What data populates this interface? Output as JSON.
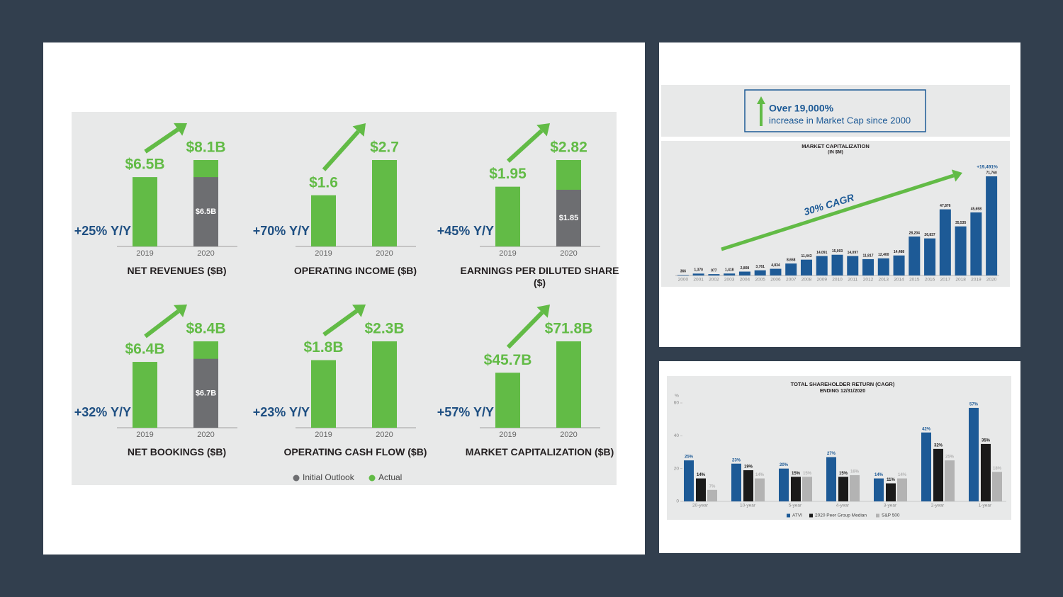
{
  "legend": [
    {
      "name": "Initial Outlook",
      "color": "#6d6e71"
    },
    {
      "name": "Actual",
      "color": "#62bb46"
    }
  ],
  "callout": {
    "headline": "Over 19,000%",
    "text": "increase in Market Cap since 2000"
  },
  "chart_data": [
    {
      "type": "bar",
      "title": "NET REVENUES ($B)",
      "growth_label": "+25% Y/Y",
      "categories": [
        "2019",
        "2020"
      ],
      "values": [
        6.5,
        8.1
      ],
      "value_labels": [
        "$6.5B",
        "$8.1B"
      ],
      "outlook_values": [
        null,
        6.5
      ],
      "outlook_labels": [
        null,
        "$6.5B"
      ]
    },
    {
      "type": "bar",
      "title": "OPERATING INCOME ($B)",
      "growth_label": "+70% Y/Y",
      "categories": [
        "2019",
        "2020"
      ],
      "values": [
        1.6,
        2.7
      ],
      "value_labels": [
        "$1.6",
        "$2.7"
      ]
    },
    {
      "type": "bar",
      "title": "EARNINGS PER DILUTED SHARE ($)",
      "growth_label": "+45% Y/Y",
      "categories": [
        "2019",
        "2020"
      ],
      "values": [
        1.95,
        2.82
      ],
      "value_labels": [
        "$1.95",
        "$2.82"
      ],
      "outlook_values": [
        null,
        1.85
      ],
      "outlook_labels": [
        null,
        "$1.85"
      ]
    },
    {
      "type": "bar",
      "title": "NET BOOKINGS ($B)",
      "growth_label": "+32% Y/Y",
      "categories": [
        "2019",
        "2020"
      ],
      "values": [
        6.4,
        8.4
      ],
      "value_labels": [
        "$6.4B",
        "$8.4B"
      ],
      "outlook_values": [
        null,
        6.7
      ],
      "outlook_labels": [
        null,
        "$6.7B"
      ]
    },
    {
      "type": "bar",
      "title": "OPERATING CASH FLOW ($B)",
      "growth_label": "+23% Y/Y",
      "categories": [
        "2019",
        "2020"
      ],
      "values": [
        1.8,
        2.3
      ],
      "value_labels": [
        "$1.8B",
        "$2.3B"
      ]
    },
    {
      "type": "bar",
      "title": "MARKET CAPITALIZATION ($B)",
      "growth_label": "+57% Y/Y",
      "categories": [
        "2019",
        "2020"
      ],
      "values": [
        45.7,
        71.8
      ],
      "value_labels": [
        "$45.7B",
        "$71.8B"
      ]
    },
    {
      "type": "column",
      "title": "MARKET CAPITALIZATION",
      "subtitle": "(IN $M)",
      "color": "#1d5a96",
      "trend_label": "30% CAGR",
      "trend_color": "#62bb46",
      "total_growth_label": "+19,491%",
      "categories": [
        "2000",
        "2001",
        "2002",
        "2003",
        "2004",
        "2005",
        "2006",
        "2007",
        "2008",
        "2009",
        "2010",
        "2011",
        "2012",
        "2013",
        "2014",
        "2015",
        "2016",
        "2017",
        "2018",
        "2019",
        "2020"
      ],
      "values": [
        366,
        1370,
        977,
        1418,
        2808,
        3761,
        4834,
        8658,
        11443,
        14091,
        15003,
        14097,
        11817,
        12400,
        14488,
        28204,
        26837,
        47876,
        35535,
        45658,
        71760
      ],
      "value_labels": [
        "366",
        "1,370",
        "977",
        "1,418",
        "2,808",
        "3,761",
        "4,834",
        "8,658",
        "11,443",
        "14,091",
        "15,003",
        "14,097",
        "11,817",
        "12,400",
        "14,488",
        "28,204",
        "26,837",
        "47,876",
        "35,535",
        "45,658",
        "71,760"
      ]
    },
    {
      "type": "grouped",
      "title": "TOTAL SHAREHOLDER RETURN (CAGR)",
      "subtitle": "ENDING 12/31/2020",
      "y_label": "%",
      "ylim": [
        0,
        60
      ],
      "yticks": [
        0,
        20,
        40,
        60
      ],
      "categories": [
        "20-year",
        "10-year",
        "5-year",
        "4-year",
        "3-year",
        "2-year",
        "1-year"
      ],
      "series": [
        {
          "name": "ATVI",
          "color": "#1d5a96",
          "values": [
            25,
            23,
            20,
            27,
            14,
            42,
            57
          ],
          "value_labels": [
            "25%",
            "23%",
            "20%",
            "27%",
            "14%",
            "42%",
            "57%"
          ]
        },
        {
          "name": "2020 Peer Group Median",
          "color": "#1a1a1a",
          "values": [
            14,
            19,
            15,
            15,
            11,
            32,
            35
          ],
          "value_labels": [
            "14%",
            "19%",
            "15%",
            "15%",
            "11%",
            "32%",
            "35%"
          ]
        },
        {
          "name": "S&P 500",
          "color": "#b3b3b3",
          "values": [
            7,
            14,
            15,
            16,
            14,
            25,
            18
          ],
          "value_labels": [
            "7%",
            "14%",
            "15%",
            "16%",
            "14%",
            "25%",
            "18%"
          ]
        }
      ]
    }
  ]
}
